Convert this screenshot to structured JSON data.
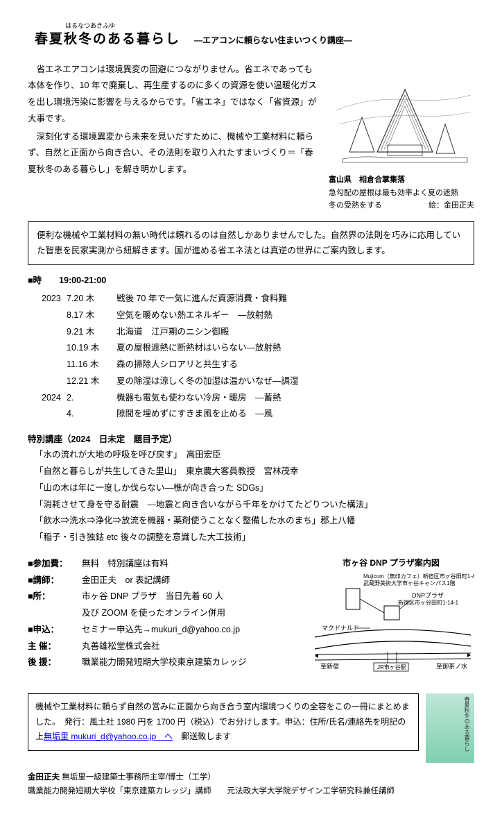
{
  "header": {
    "ruby": "はるなつあきふゆ",
    "title": "春夏秋冬のある暮らし",
    "subtitle": "―エアコンに頼らない住まいつくり講座―"
  },
  "intro_paragraphs": [
    "省エネエアコンは環境異変の回避につながりません。省エネであっても本体を作り、10 年で廃棄し、再生産するのに多くの資源を使い温暖化ガスを出し環境汚染に影響を与えるからです。「省エネ」ではなく「省資源」が大事です。",
    "深刻化する環境異変から未来を見いだすために、機械や工業材料に頼らず、自然と正面から向き合い、その法則を取り入れたすまいづくり＝「春夏秋冬のある暮らし」を解き明かします。"
  ],
  "illustration": {
    "location": "富山県　相倉合掌集落",
    "caption1": "急勾配の屋根は最も効率よく夏の遮熱",
    "caption2_left": "冬の受熱をする",
    "caption2_right": "絵：金田正夫"
  },
  "framed_text": "便利な機械や工業材料の無い時代は頼れるのは自然しかありませんでした。自然界の法則を巧みに応用していた智恵を民家実測から紐解きます。国が進める省エネ法とは真逆の世界にご案内致します。",
  "schedule": {
    "time_label": "■時",
    "time_value": "19:00-21:00",
    "rows": [
      {
        "year": "2023",
        "date": "7.20 木",
        "topic": "戦後 70 年で一気に進んだ資源消費・食料難"
      },
      {
        "year": "",
        "date": "8.17 木",
        "topic": "空気を暖めない熱エネルギー　―放射熱"
      },
      {
        "year": "",
        "date": "9.21 木",
        "topic": "北海道　江戸期のニシン御殿"
      },
      {
        "year": "",
        "date": "10.19 木",
        "topic": "夏の屋根遮熱に断熱材はいらない―放射熱"
      },
      {
        "year": "",
        "date": "11.16 木",
        "topic": "森の掃除人シロアリと共生する"
      },
      {
        "year": "",
        "date": "12.21 木",
        "topic": "夏の除湿は涼しく冬の加湿は温かいなぜ―調湿"
      },
      {
        "year": "2024",
        "date": "2.",
        "topic": "機器も電気も使わない冷房・暖房　―蓄熱"
      },
      {
        "year": "",
        "date": "4.",
        "topic": "隙間を埋めずにすきま風を止める　―風"
      }
    ]
  },
  "special": {
    "header": "特別講座（2024　日未定　題目予定）",
    "items": [
      "「水の流れが大地の呼吸を呼び戻す」　高田宏臣",
      "「自然と暮らしが共生してきた里山」　東京農大客員教授　宮林茂幸",
      "「山の木は年に一度しか伐らない―樵が向き合った SDGs」",
      "「消耗させて身を守る耐震　―地震と向き合いながら千年をかけてたどりついた構法」",
      "「飲水⇒洗水⇒浄化⇒放流を機器・薬剤使うことなく整備した水のまち」郡上八幡",
      "「稲子・引き独鈷 etc 後々の調整を意識した大工技術」"
    ]
  },
  "info": {
    "rows": [
      {
        "label": "■参加費：",
        "value": "無料　特別講座は有料"
      },
      {
        "label": "■講師：",
        "value": "金田正夫　or 表記講師"
      },
      {
        "label": "■所：",
        "value": "市ヶ谷 DNP プラザ　当日先着 60 人"
      },
      {
        "label": "",
        "value": "及び ZOOM を使ったオンライン併用"
      },
      {
        "label": "■申込：",
        "value": "セミナー申込先→mukuri_d@yahoo.co.jp"
      },
      {
        "label": "主 催：",
        "value": "丸善雄松堂株式会社"
      },
      {
        "label": "後 援：",
        "value": "職業能力開発短期大学校東京建築カレッジ"
      }
    ]
  },
  "map": {
    "title": "市ヶ谷 DNP プラザ案内図",
    "mujicom1": "Mujicom（無印カフェ）新宿区市ヶ谷田町1-4",
    "mujicom2": "武蔵野美術大学市ヶ谷キャンパス1階",
    "dnp1": "DNPプラザ",
    "dnp2": "新宿区市ヶ谷田町1-14-1",
    "mcdonald": "マクドナルド",
    "left": "至新宿",
    "right": "至御茶ノ水",
    "station": "JR市ヶ谷駅"
  },
  "book": {
    "text_before": "機械や工業材料に頼らず自然の営みに正面から向き合う室内環境つくりの全容をこの一冊にまとめました。　発行：風土社 1980 円を 1700 円（税込）でお分けします。申込：住所/氏名/連絡先を明記の上",
    "link_text": "無垢里 mukuri_d@yahoo.co.jp　へ",
    "text_after": "　郵送致します",
    "cover_text": "春夏秋冬のある暮らし"
  },
  "footer": {
    "line1_bold": "金田正夫",
    "line1_rest": " 無垢里一級建築士事務所主宰/博士（工学）",
    "line2": "職業能力開発短期大学校「東京建築カレッジ」講師　　元法政大学大学院デザイン工学研究科兼任講師"
  }
}
